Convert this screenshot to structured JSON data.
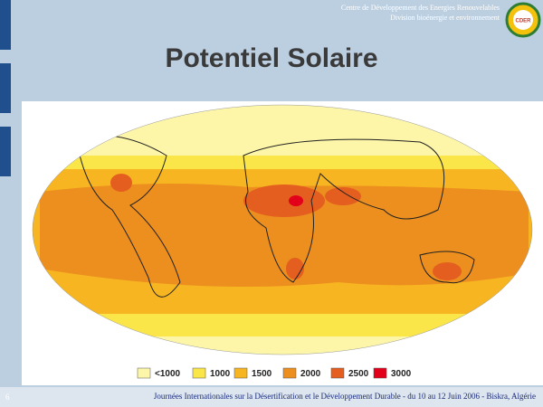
{
  "header": {
    "org_line1": "Centre de Développement des Energies Renouvelables",
    "org_line2": "Division bioénergie et environnement",
    "logo": "CDER"
  },
  "title": "Potentiel Solaire",
  "legend": [
    {
      "label": "<1000",
      "color": "#fdf6a8"
    },
    {
      "label": "1000",
      "color": "#fbe64a"
    },
    {
      "label": "1500",
      "color": "#f7b521"
    },
    {
      "label": "2000",
      "color": "#ec8f1f"
    },
    {
      "label": "2500",
      "color": "#e45e1f"
    },
    {
      "label": "3000",
      "color": "#e2001a"
    }
  ],
  "footer": {
    "page": "6",
    "text": "Journées Internationales sur la Désertification et le Développement Durable - du 10 au 12 Juin 2006 - Biskra, Algérie"
  }
}
